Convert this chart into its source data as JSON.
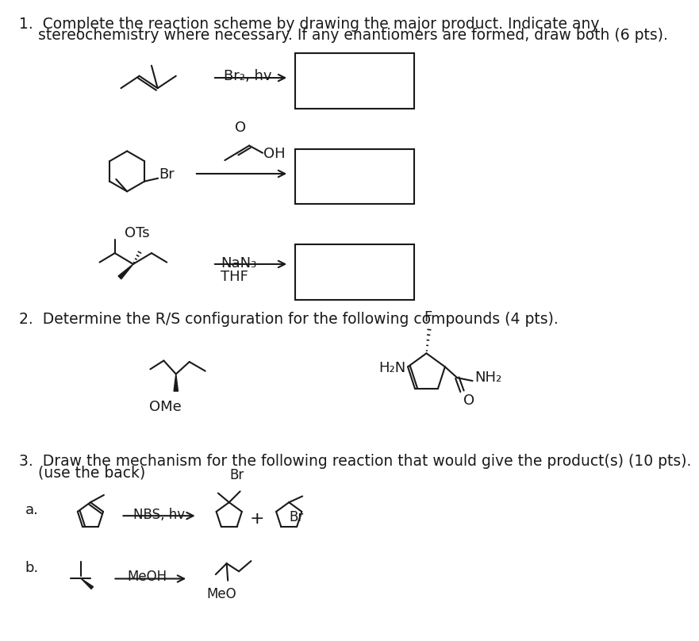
{
  "background_color": "#ffffff",
  "text_color": "#1a1a1a",
  "q1_line1": "1.  Complete the reaction scheme by drawing the major product. Indicate any",
  "q1_line2": "    stereochemistry where necessary. If any enantiomers are formed, draw both (6 pts).",
  "q2_line1": "2.  Determine the R/S configuration for the following compounds (4 pts).",
  "q3_line1": "3.  Draw the mechanism for the following reaction that would give the product(s) (10 pts).",
  "q3_line2": "    (use the back)",
  "label_a": "a.",
  "label_b": "b.",
  "reagent1": "Br₂, hv",
  "reagent2": "NaN₃",
  "reagent3": "THF",
  "label_br": "Br",
  "label_oh": "OH",
  "label_ots": "OTs",
  "label_ome": "OMe",
  "label_h2n": "H₂N",
  "label_nh2": "NH₂",
  "label_f": "F",
  "label_o": "O",
  "label_meo": "MeO",
  "label_plus": "+",
  "label_nbs": "NBS, hv",
  "label_meoh": "MeOH"
}
